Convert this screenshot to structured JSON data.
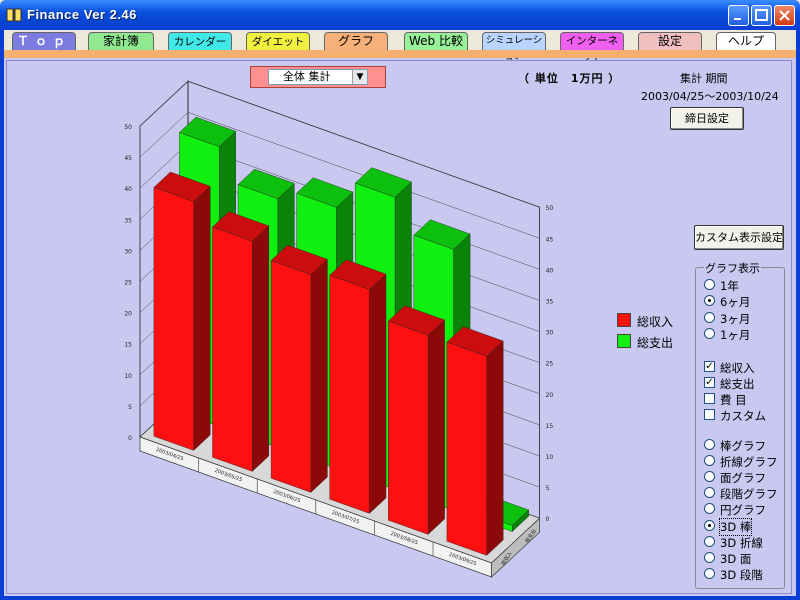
{
  "window": {
    "title": "Finance  Ver 2.46"
  },
  "tabs": [
    {
      "label": "Ｔｏｐ",
      "color": "#7c7ce0",
      "text_color": "#ffffff"
    },
    {
      "label": "家計簿",
      "color": "#90e890",
      "text_color": "#000000"
    },
    {
      "label": "カレンダー",
      "color": "#40e8e8",
      "text_color": "#000000"
    },
    {
      "label": "ダイエット",
      "color": "#f0f040",
      "text_color": "#000000"
    },
    {
      "label": "グラフ",
      "color": "#f8b07a",
      "text_color": "#000000"
    },
    {
      "label": "Web 比較",
      "color": "#98f098",
      "text_color": "#000000"
    },
    {
      "label": "シミュレーション",
      "color": "#b8d4ff",
      "text_color": "#000000"
    },
    {
      "label": "インターネット",
      "color": "#f060f0",
      "text_color": "#000000"
    },
    {
      "label": "設定",
      "color": "#f0c0c0",
      "text_color": "#000000"
    },
    {
      "label": "ヘルプ",
      "color": "#ffffff",
      "text_color": "#000000"
    }
  ],
  "scope_select": {
    "value": "全体 集計"
  },
  "unit_label": "（ 単位　1万円 ）",
  "period": {
    "title": "集計 期間",
    "range": "2003/04/25～2003/10/24"
  },
  "buttons": {
    "closing_day": "締日設定",
    "custom_display": "カスタム表示設定"
  },
  "legend": [
    {
      "label": "総収入",
      "color": "#ff1010"
    },
    {
      "label": "総支出",
      "color": "#10f010"
    }
  ],
  "graph_options": {
    "title": "グラフ表示",
    "periods": [
      {
        "label": "1年",
        "checked": false
      },
      {
        "label": "6ヶ月",
        "checked": true
      },
      {
        "label": "3ヶ月",
        "checked": false
      },
      {
        "label": "1ヶ月",
        "checked": false
      }
    ],
    "series": [
      {
        "label": "総収入",
        "checked": true
      },
      {
        "label": "総支出",
        "checked": true
      },
      {
        "label": "費 目",
        "checked": false
      },
      {
        "label": "カスタム",
        "checked": false
      }
    ],
    "types": [
      {
        "label": "棒グラフ",
        "checked": false
      },
      {
        "label": "折線グラフ",
        "checked": false
      },
      {
        "label": "面グラフ",
        "checked": false
      },
      {
        "label": "段階グラフ",
        "checked": false
      },
      {
        "label": "円グラフ",
        "checked": false
      },
      {
        "label": "3D 棒",
        "checked": true
      },
      {
        "label": "3D 折線",
        "checked": false
      },
      {
        "label": "3D 面",
        "checked": false
      },
      {
        "label": "3D 段階",
        "checked": false
      }
    ]
  },
  "chart_data": {
    "type": "bar",
    "style": "3d",
    "categories": [
      "2003/04/25",
      "2003/05/25",
      "2003/06/25",
      "2003/07/25",
      "2003/08/25",
      "2003/09/25"
    ],
    "series": [
      {
        "name": "総収入",
        "color": "#ff1010",
        "values": [
          40,
          37,
          35,
          36,
          32,
          32
        ]
      },
      {
        "name": "総支出",
        "color": "#10f010",
        "values": [
          45,
          40,
          42,
          47,
          42,
          1
        ]
      }
    ],
    "ylim": [
      0,
      50
    ],
    "yticks": [
      "0",
      "5",
      "10",
      "15",
      "20",
      "25",
      "30",
      "35",
      "40",
      "45",
      "50"
    ],
    "depth_labels": [
      "総収入",
      "総支出"
    ],
    "grid": true
  }
}
